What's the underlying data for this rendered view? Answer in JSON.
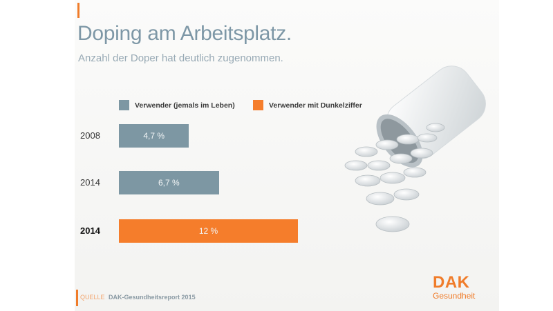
{
  "header": {
    "title": "Doping am Arbeitsplatz.",
    "subtitle": "Anzahl der Doper hat deutlich zugenommen."
  },
  "legend": {
    "items": [
      {
        "label": "Verwender (jemals im Leben)",
        "color": "#7d97a3"
      },
      {
        "label": "Verwender mit Dunkelziffer",
        "color": "#f57d2b"
      }
    ]
  },
  "chart_data": {
    "type": "bar",
    "orientation": "horizontal",
    "title": "Doping am Arbeitsplatz.",
    "subtitle": "Anzahl der Doper hat deutlich zugenommen.",
    "unit": "%",
    "categories": [
      "2008",
      "2014",
      "2014"
    ],
    "values": [
      4.7,
      6.7,
      12
    ],
    "value_labels": [
      "4,7 %",
      "6,7 %",
      "12 %"
    ],
    "series_of_bar": [
      "Verwender (jemals im Leben)",
      "Verwender (jemals im Leben)",
      "Verwender mit Dunkelziffer"
    ],
    "bold_category": [
      false,
      false,
      true
    ],
    "xlim": [
      0,
      12
    ],
    "grid": false,
    "legend_position": "top"
  },
  "footer": {
    "source_label": "QUELLE",
    "source_text": "DAK-Gesundheitsreport 2015"
  },
  "logo": {
    "top": "DAK",
    "bottom": "Gesundheit"
  },
  "colors": {
    "accent": "#f07c2a",
    "slate": "#7d97a3"
  }
}
